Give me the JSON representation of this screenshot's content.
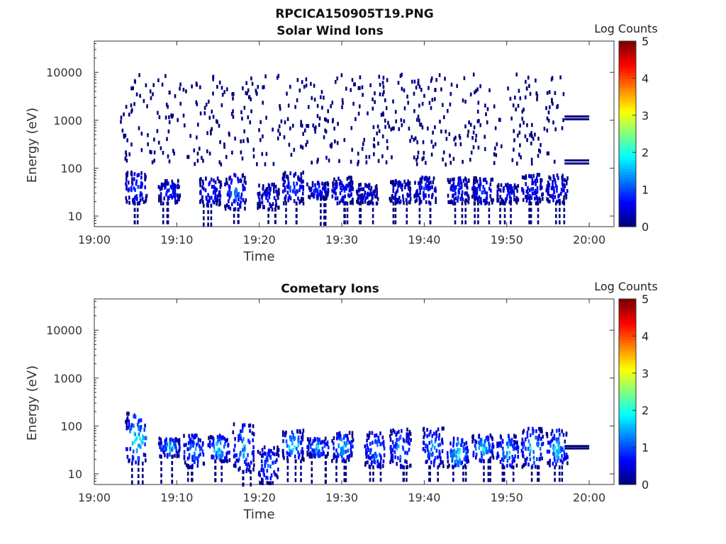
{
  "figure": {
    "title": "RPCICA150905T19.PNG"
  },
  "chart_data": [
    {
      "type": "heatmap",
      "title": "Solar Wind Ions",
      "xlabel": "Time",
      "ylabel": "Energy (eV)",
      "x_range": [
        "19:00",
        "20:03"
      ],
      "y_scale": "log",
      "y_range": [
        6,
        45000
      ],
      "x_ticks": [
        "19:00",
        "19:10",
        "19:20",
        "19:30",
        "19:40",
        "19:50",
        "20:00"
      ],
      "y_ticks": [
        "10",
        "100",
        "1000",
        "10000"
      ],
      "colorbar": {
        "label": "Log Counts",
        "range": [
          0,
          5
        ],
        "ticks": [
          "0",
          "1",
          "2",
          "3",
          "4",
          "5"
        ],
        "colormap": "jet"
      },
      "grid": false,
      "sparse_background": {
        "t_start": "19:03",
        "t_end": "19:57",
        "energy_range": [
          130,
          10000
        ],
        "log_counts": 0
      },
      "bursts": [
        {
          "t": "19:05",
          "e_low": 20,
          "e_high": 90,
          "peak_log_counts": 1.2
        },
        {
          "t": "19:09",
          "e_low": 20,
          "e_high": 60,
          "peak_log_counts": 1.0
        },
        {
          "t": "19:14",
          "e_low": 18,
          "e_high": 70,
          "peak_log_counts": 1.0
        },
        {
          "t": "19:17",
          "e_low": 15,
          "e_high": 80,
          "peak_log_counts": 1.5
        },
        {
          "t": "19:21",
          "e_low": 15,
          "e_high": 50,
          "peak_log_counts": 0.8
        },
        {
          "t": "19:24",
          "e_low": 20,
          "e_high": 90,
          "peak_log_counts": 1.2
        },
        {
          "t": "19:27",
          "e_low": 25,
          "e_high": 55,
          "peak_log_counts": 1.0
        },
        {
          "t": "19:30",
          "e_low": 20,
          "e_high": 70,
          "peak_log_counts": 1.0
        },
        {
          "t": "19:33",
          "e_low": 20,
          "e_high": 50,
          "peak_log_counts": 0.6
        },
        {
          "t": "19:37",
          "e_low": 20,
          "e_high": 60,
          "peak_log_counts": 0.8
        },
        {
          "t": "19:40",
          "e_low": 20,
          "e_high": 70,
          "peak_log_counts": 0.9
        },
        {
          "t": "19:44",
          "e_low": 20,
          "e_high": 70,
          "peak_log_counts": 1.0
        },
        {
          "t": "19:47",
          "e_low": 20,
          "e_high": 70,
          "peak_log_counts": 1.0
        },
        {
          "t": "19:50",
          "e_low": 20,
          "e_high": 50,
          "peak_log_counts": 0.8
        },
        {
          "t": "19:53",
          "e_low": 20,
          "e_high": 80,
          "peak_log_counts": 1.0
        },
        {
          "t": "19:56",
          "e_low": 20,
          "e_high": 80,
          "peak_log_counts": 1.0
        }
      ],
      "bands": [
        {
          "t_start": "19:57",
          "t_end": "20:00",
          "energy": 1200,
          "log_counts": 0
        },
        {
          "t_start": "19:57",
          "t_end": "20:00",
          "energy": 1050,
          "log_counts": 0
        },
        {
          "t_start": "19:57",
          "t_end": "20:00",
          "energy": 145,
          "log_counts": 0
        },
        {
          "t_start": "19:57",
          "t_end": "20:00",
          "energy": 125,
          "log_counts": 0
        }
      ]
    },
    {
      "type": "heatmap",
      "title": "Cometary Ions",
      "xlabel": "Time",
      "ylabel": "Energy (eV)",
      "x_range": [
        "19:00",
        "20:03"
      ],
      "y_scale": "log",
      "y_range": [
        6,
        45000
      ],
      "x_ticks": [
        "19:00",
        "19:10",
        "19:20",
        "19:30",
        "19:40",
        "19:50",
        "20:00"
      ],
      "y_ticks": [
        "10",
        "100",
        "1000",
        "10000"
      ],
      "colorbar": {
        "label": "Log Counts",
        "range": [
          0,
          5
        ],
        "ticks": [
          "0",
          "1",
          "2",
          "3",
          "4",
          "5"
        ],
        "colormap": "jet"
      },
      "grid": false,
      "bursts": [
        {
          "t": "19:05",
          "e_low": 18,
          "e_high": 200,
          "peak_log_counts": 2.5
        },
        {
          "t": "19:09",
          "e_low": 25,
          "e_high": 60,
          "peak_log_counts": 2.0
        },
        {
          "t": "19:12",
          "e_low": 15,
          "e_high": 70,
          "peak_log_counts": 1.8
        },
        {
          "t": "19:15",
          "e_low": 20,
          "e_high": 70,
          "peak_log_counts": 2.3
        },
        {
          "t": "19:18",
          "e_low": 12,
          "e_high": 120,
          "peak_log_counts": 2.0
        },
        {
          "t": "19:21",
          "e_low": 7,
          "e_high": 40,
          "peak_log_counts": 1.5
        },
        {
          "t": "19:24",
          "e_low": 20,
          "e_high": 90,
          "peak_log_counts": 2.3
        },
        {
          "t": "19:27",
          "e_low": 25,
          "e_high": 60,
          "peak_log_counts": 2.0
        },
        {
          "t": "19:30",
          "e_low": 20,
          "e_high": 80,
          "peak_log_counts": 2.0
        },
        {
          "t": "19:34",
          "e_low": 15,
          "e_high": 80,
          "peak_log_counts": 1.8
        },
        {
          "t": "19:37",
          "e_low": 15,
          "e_high": 100,
          "peak_log_counts": 1.8
        },
        {
          "t": "19:41",
          "e_low": 15,
          "e_high": 100,
          "peak_log_counts": 1.8
        },
        {
          "t": "19:44",
          "e_low": 15,
          "e_high": 60,
          "peak_log_counts": 2.5
        },
        {
          "t": "19:47",
          "e_low": 20,
          "e_high": 70,
          "peak_log_counts": 2.2
        },
        {
          "t": "19:50",
          "e_low": 15,
          "e_high": 70,
          "peak_log_counts": 2.0
        },
        {
          "t": "19:53",
          "e_low": 15,
          "e_high": 100,
          "peak_log_counts": 2.2
        },
        {
          "t": "19:56",
          "e_low": 15,
          "e_high": 90,
          "peak_log_counts": 2.0
        }
      ],
      "bands": [
        {
          "t_start": "19:57",
          "t_end": "20:00",
          "energy": 38,
          "log_counts": 0
        },
        {
          "t_start": "19:57",
          "t_end": "20:00",
          "energy": 34,
          "log_counts": 0
        }
      ]
    }
  ]
}
